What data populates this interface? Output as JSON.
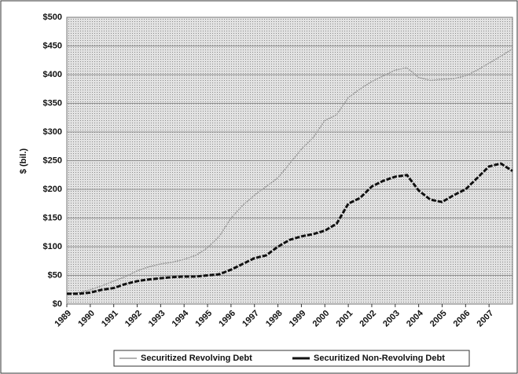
{
  "chart_data": {
    "type": "line",
    "y_label": "$ (bil.)",
    "x": [
      1989,
      1989.5,
      1990,
      1990.5,
      1991,
      1991.5,
      1992,
      1992.5,
      1993,
      1993.5,
      1994,
      1994.5,
      1995,
      1995.5,
      1996,
      1996.5,
      1997,
      1997.5,
      1998,
      1998.5,
      1999,
      1999.5,
      2000,
      2000.5,
      2001,
      2001.5,
      2002,
      2002.5,
      2003,
      2003.5,
      2004,
      2004.5,
      2005,
      2005.5,
      2006,
      2006.5,
      2007,
      2007.5,
      2008
    ],
    "series": [
      {
        "name": "Securitized Revolving Debt",
        "color": "#9a9a9a",
        "values": [
          18,
          20,
          25,
          32,
          40,
          48,
          58,
          65,
          70,
          73,
          78,
          85,
          98,
          118,
          150,
          172,
          190,
          205,
          220,
          245,
          270,
          290,
          320,
          330,
          360,
          375,
          388,
          398,
          408,
          412,
          395,
          390,
          392,
          393,
          398,
          408,
          420,
          432,
          445
        ]
      },
      {
        "name": "Securitized Non-Revolving Debt",
        "color": "#111111",
        "values": [
          18,
          18,
          20,
          25,
          28,
          35,
          40,
          43,
          45,
          47,
          48,
          48,
          50,
          52,
          60,
          70,
          80,
          85,
          100,
          112,
          118,
          122,
          128,
          140,
          175,
          185,
          205,
          215,
          222,
          225,
          198,
          182,
          178,
          190,
          200,
          220,
          240,
          245,
          232
        ]
      }
    ],
    "xlim": [
      1989,
      2008
    ],
    "xticks": [
      1989,
      1990,
      1991,
      1992,
      1993,
      1994,
      1995,
      1996,
      1997,
      1998,
      1999,
      2000,
      2001,
      2002,
      2003,
      2004,
      2005,
      2006,
      2007
    ],
    "ylim": [
      0,
      500
    ],
    "yticks": [
      {
        "value": 0,
        "label": "$0"
      },
      {
        "value": 50,
        "label": "$50"
      },
      {
        "value": 100,
        "label": "$100"
      },
      {
        "value": 150,
        "label": "$150"
      },
      {
        "value": 200,
        "label": "$200"
      },
      {
        "value": 250,
        "label": "$250"
      },
      {
        "value": 300,
        "label": "$300"
      },
      {
        "value": 350,
        "label": "$350"
      },
      {
        "value": 400,
        "label": "$400"
      },
      {
        "value": 450,
        "label": "$450"
      },
      {
        "value": 500,
        "label": "$500"
      }
    ],
    "grid": true,
    "legend": "bottom"
  }
}
